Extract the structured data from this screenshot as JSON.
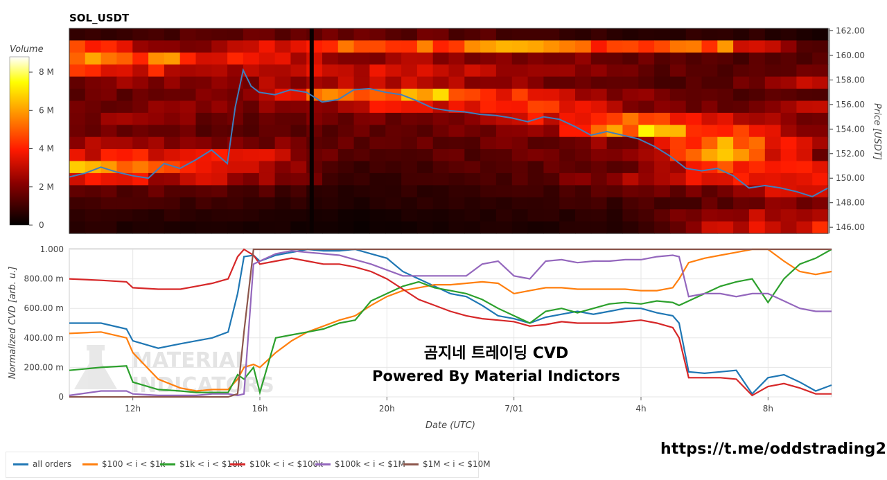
{
  "chart_data": [
    {
      "type": "heatmap",
      "title": "SOL_USDT",
      "ylabel": "Price [USDT]",
      "ylim": [
        145.5,
        162.2
      ],
      "yticks": [
        "162.00",
        "160.00",
        "158.00",
        "156.00",
        "154.00",
        "152.00",
        "150.00",
        "148.00",
        "146.00"
      ],
      "colorbar": {
        "title": "Volume",
        "ticks": [
          "8 M",
          "6 M",
          "4 M",
          "2 M",
          "0"
        ],
        "range": [
          0,
          8.8
        ]
      },
      "price_series": {
        "x": [
          10.0,
          10.5,
          11.0,
          11.5,
          12.0,
          12.5,
          13.0,
          13.5,
          14.0,
          14.5,
          15.0,
          15.25,
          15.5,
          15.75,
          16.0,
          16.5,
          17.0,
          17.5,
          18.0,
          18.5,
          19.0,
          19.5,
          20.0,
          20.5,
          21.0,
          21.5,
          22.0,
          22.5,
          23.0,
          23.5,
          24.0,
          24.5,
          25.0,
          25.5,
          26.0,
          26.5,
          27.0,
          27.5,
          28.0,
          28.5,
          29.0,
          29.5,
          30.0,
          30.5,
          31.0,
          31.5,
          32.0,
          32.5,
          33.0,
          33.5,
          34.0
        ],
        "y": [
          150.1,
          150.4,
          150.9,
          150.5,
          150.2,
          150.0,
          151.2,
          150.8,
          151.5,
          152.3,
          151.2,
          155.8,
          158.8,
          157.5,
          157.0,
          156.8,
          157.2,
          157.0,
          156.2,
          156.4,
          157.2,
          157.3,
          157.0,
          156.8,
          156.3,
          155.7,
          155.5,
          155.4,
          155.2,
          155.1,
          154.9,
          154.6,
          155.0,
          154.8,
          154.2,
          153.5,
          153.8,
          153.5,
          153.2,
          152.6,
          151.8,
          150.8,
          150.6,
          150.8,
          150.2,
          149.2,
          149.4,
          149.2,
          148.9,
          148.5,
          149.2
        ]
      },
      "heatmap_rows": [
        {
          "price": 161.5,
          "levels": [
            0.8,
            1.2,
            1.6,
            1.8,
            1.4,
            1.0,
            0.6,
            0.8,
            0.4
          ]
        },
        {
          "price": 160.5,
          "levels": [
            4.5,
            2.2,
            3.0,
            4.8,
            5.0,
            5.2,
            5.0,
            4.8,
            1.0
          ]
        },
        {
          "price": 159.5,
          "levels": [
            5.2,
            5.0,
            3.2,
            2.6,
            2.4,
            2.2,
            1.8,
            1.4,
            1.2
          ]
        },
        {
          "price": 158.5,
          "levels": [
            4.0,
            3.5,
            2.8,
            3.2,
            2.8,
            2.2,
            1.6,
            1.2,
            1.6
          ]
        },
        {
          "price": 157.5,
          "levels": [
            2.0,
            2.2,
            2.4,
            3.0,
            2.6,
            2.0,
            1.5,
            1.2,
            3.8
          ]
        },
        {
          "price": 156.5,
          "levels": [
            1.6,
            1.8,
            2.2,
            6.0,
            5.6,
            3.2,
            2.0,
            1.4,
            1.2
          ]
        },
        {
          "price": 155.5,
          "levels": [
            1.8,
            2.0,
            2.0,
            3.0,
            3.8,
            4.6,
            2.4,
            1.8,
            2.6
          ]
        },
        {
          "price": 154.5,
          "levels": [
            2.2,
            2.0,
            1.6,
            1.8,
            2.2,
            3.4,
            6.0,
            3.0,
            1.6
          ]
        },
        {
          "price": 153.5,
          "levels": [
            1.8,
            1.6,
            1.4,
            1.6,
            1.8,
            2.4,
            6.2,
            4.2,
            1.8
          ]
        },
        {
          "price": 152.5,
          "levels": [
            2.6,
            2.4,
            2.0,
            1.4,
            1.6,
            1.8,
            2.2,
            6.6,
            2.4
          ]
        },
        {
          "price": 151.5,
          "levels": [
            3.0,
            4.2,
            3.0,
            1.2,
            1.4,
            1.6,
            2.0,
            6.0,
            2.0
          ]
        },
        {
          "price": 150.5,
          "levels": [
            6.8,
            5.4,
            3.0,
            1.0,
            1.2,
            1.4,
            1.8,
            4.2,
            3.2
          ]
        },
        {
          "price": 149.5,
          "levels": [
            3.4,
            3.0,
            2.4,
            0.8,
            1.0,
            1.4,
            2.8,
            3.4,
            4.6
          ]
        },
        {
          "price": 148.5,
          "levels": [
            1.6,
            1.4,
            1.2,
            0.6,
            0.8,
            1.0,
            1.4,
            2.0,
            4.0
          ]
        },
        {
          "price": 147.5,
          "levels": [
            1.2,
            1.0,
            0.8,
            0.5,
            0.7,
            0.8,
            1.0,
            1.6,
            2.2
          ]
        },
        {
          "price": 146.5,
          "levels": [
            0.8,
            0.7,
            0.6,
            0.3,
            0.5,
            0.6,
            0.8,
            2.6,
            3.0
          ]
        },
        {
          "price": 145.8,
          "levels": [
            0.6,
            0.5,
            0.4,
            0.2,
            0.4,
            0.5,
            0.6,
            3.2,
            3.6
          ]
        }
      ]
    },
    {
      "type": "line",
      "xlabel": "Date (UTC)",
      "ylabel": "Normalized CVD [arb. u.]",
      "ylim": [
        0,
        1
      ],
      "xlim": [
        10.0,
        34.0
      ],
      "xticks": [
        {
          "x": 12,
          "label": "12h"
        },
        {
          "x": 16,
          "label": "16h"
        },
        {
          "x": 20,
          "label": "20h"
        },
        {
          "x": 24,
          "label": "7/01"
        },
        {
          "x": 28,
          "label": "4h"
        },
        {
          "x": 32,
          "label": "8h"
        }
      ],
      "yticks": [
        "1.000",
        "800.00 m",
        "600.00 m",
        "400.00 m",
        "200.00 m",
        "0"
      ],
      "x": [
        10.0,
        11.0,
        11.8,
        12.0,
        12.8,
        13.5,
        14.0,
        14.5,
        15.0,
        15.3,
        15.5,
        15.8,
        16.0,
        16.5,
        17.0,
        17.5,
        18.0,
        18.5,
        19.0,
        19.5,
        20.0,
        20.5,
        21.0,
        21.5,
        22.0,
        22.5,
        23.0,
        23.5,
        24.0,
        24.5,
        25.0,
        25.5,
        26.0,
        26.5,
        27.0,
        27.5,
        28.0,
        28.5,
        29.0,
        29.2,
        29.5,
        30.0,
        30.5,
        31.0,
        31.5,
        32.0,
        32.5,
        33.0,
        33.5,
        34.0
      ],
      "series": [
        {
          "name": "all orders",
          "color": "#1f77b4",
          "values": [
            0.5,
            0.5,
            0.46,
            0.38,
            0.33,
            0.36,
            0.38,
            0.4,
            0.44,
            0.7,
            0.95,
            0.96,
            0.92,
            0.96,
            0.98,
            1.0,
            0.99,
            0.99,
            1.0,
            0.97,
            0.94,
            0.85,
            0.8,
            0.75,
            0.7,
            0.68,
            0.62,
            0.55,
            0.53,
            0.5,
            0.54,
            0.56,
            0.58,
            0.56,
            0.58,
            0.6,
            0.6,
            0.57,
            0.55,
            0.5,
            0.17,
            0.16,
            0.17,
            0.18,
            0.02,
            0.13,
            0.15,
            0.1,
            0.04,
            0.08
          ]
        },
        {
          "name": "$100 < i < $1k",
          "color": "#ff7f0e",
          "values": [
            0.43,
            0.44,
            0.4,
            0.3,
            0.12,
            0.06,
            0.04,
            0.05,
            0.05,
            0.12,
            0.2,
            0.22,
            0.2,
            0.3,
            0.38,
            0.44,
            0.48,
            0.52,
            0.55,
            0.62,
            0.68,
            0.72,
            0.74,
            0.76,
            0.76,
            0.77,
            0.78,
            0.77,
            0.7,
            0.72,
            0.74,
            0.74,
            0.73,
            0.73,
            0.73,
            0.73,
            0.72,
            0.72,
            0.74,
            0.8,
            0.91,
            0.94,
            0.96,
            0.98,
            1.0,
            1.0,
            0.92,
            0.85,
            0.83,
            0.85
          ]
        },
        {
          "name": "$1k < i < $10k",
          "color": "#2ca02c",
          "values": [
            0.18,
            0.2,
            0.21,
            0.1,
            0.05,
            0.04,
            0.03,
            0.03,
            0.03,
            0.15,
            0.12,
            0.2,
            0.03,
            0.4,
            0.42,
            0.44,
            0.46,
            0.5,
            0.52,
            0.65,
            0.7,
            0.75,
            0.78,
            0.74,
            0.72,
            0.7,
            0.66,
            0.6,
            0.55,
            0.5,
            0.58,
            0.6,
            0.57,
            0.6,
            0.63,
            0.64,
            0.63,
            0.65,
            0.64,
            0.62,
            0.65,
            0.7,
            0.75,
            0.78,
            0.8,
            0.64,
            0.8,
            0.9,
            0.94,
            1.0
          ]
        },
        {
          "name": "$10k < i < $100k",
          "color": "#d62728",
          "values": [
            0.8,
            0.79,
            0.78,
            0.74,
            0.73,
            0.73,
            0.75,
            0.77,
            0.8,
            0.95,
            1.0,
            0.96,
            0.9,
            0.92,
            0.94,
            0.92,
            0.9,
            0.9,
            0.88,
            0.85,
            0.8,
            0.73,
            0.66,
            0.62,
            0.58,
            0.55,
            0.53,
            0.52,
            0.51,
            0.48,
            0.49,
            0.51,
            0.5,
            0.5,
            0.5,
            0.51,
            0.52,
            0.5,
            0.47,
            0.4,
            0.13,
            0.13,
            0.13,
            0.12,
            0.01,
            0.07,
            0.09,
            0.06,
            0.02,
            0.02
          ]
        },
        {
          "name": "$100k < i < $1M",
          "color": "#9467bd",
          "values": [
            0.01,
            0.04,
            0.04,
            0.02,
            0.01,
            0.01,
            0.01,
            0.02,
            0.02,
            0.01,
            0.02,
            0.9,
            0.92,
            0.97,
            0.99,
            0.98,
            0.97,
            0.96,
            0.93,
            0.9,
            0.86,
            0.82,
            0.82,
            0.82,
            0.82,
            0.82,
            0.9,
            0.92,
            0.82,
            0.8,
            0.92,
            0.93,
            0.91,
            0.92,
            0.92,
            0.93,
            0.93,
            0.95,
            0.96,
            0.95,
            0.68,
            0.7,
            0.7,
            0.68,
            0.7,
            0.7,
            0.65,
            0.6,
            0.58,
            0.58
          ]
        },
        {
          "name": "$1M < i < $10M",
          "color": "#8c564b",
          "values": [
            0.0,
            0.0,
            0.0,
            0.0,
            0.0,
            0.0,
            0.0,
            0.0,
            0.0,
            0.02,
            0.44,
            1.0,
            1.0,
            1.0,
            1.0,
            1.0,
            1.0,
            1.0,
            1.0,
            1.0,
            1.0,
            1.0,
            1.0,
            1.0,
            1.0,
            1.0,
            1.0,
            1.0,
            1.0,
            1.0,
            1.0,
            1.0,
            1.0,
            1.0,
            1.0,
            1.0,
            1.0,
            1.0,
            1.0,
            1.0,
            1.0,
            1.0,
            1.0,
            1.0,
            1.0,
            1.0,
            1.0,
            1.0,
            1.0,
            1.0
          ]
        }
      ],
      "legend_placement": "bottom-left",
      "annotations": [
        "곰지네 트레이딩 CVD",
        "Powered By Material Indictors"
      ],
      "watermark": "MATERIAL INDICATORS"
    }
  ],
  "footer": {
    "link_text": "https://t.me/oddstrading2"
  }
}
